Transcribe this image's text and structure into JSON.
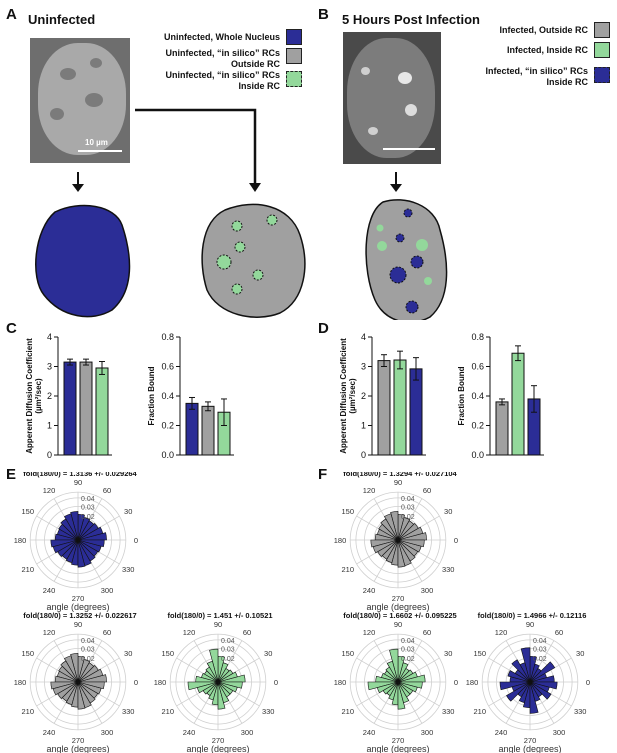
{
  "panels": {
    "A": {
      "label": "A",
      "title": "Uninfected",
      "scale_bar": "10 µm"
    },
    "B": {
      "label": "B",
      "title": "5 Hours Post Infection"
    },
    "C": {
      "label": "C"
    },
    "D": {
      "label": "D"
    },
    "E": {
      "label": "E"
    },
    "F": {
      "label": "F"
    }
  },
  "legend_uninfected": [
    {
      "lines": [
        "Uninfected, Whole Nucleus"
      ],
      "color": "#2b2d96",
      "dashed": false
    },
    {
      "lines": [
        "Uninfected, “in silico” RCs",
        "Outside RC"
      ],
      "color": "#a0a0a0",
      "dashed": false
    },
    {
      "lines": [
        "Uninfected, “in silico” RCs",
        "Inside RC"
      ],
      "color": "#93d89b",
      "dashed": true
    }
  ],
  "legend_infected": [
    {
      "lines": [
        "Infected, Outside RC"
      ],
      "color": "#a0a0a0",
      "dashed": false
    },
    {
      "lines": [
        "Infected, Inside RC"
      ],
      "color": "#93d89b",
      "dashed": false
    },
    {
      "lines": [
        "Infected, “in silico” RCs",
        "Inside RC"
      ],
      "color": "#2b2d96",
      "dashed": true
    }
  ],
  "colors": {
    "blue": "#2b2d96",
    "gray": "#a0a0a0",
    "green": "#93d89b"
  },
  "chart_data": [
    {
      "panel": "C",
      "type": "bar",
      "ylabel": "Apperent Diffusion Coefficient (µm²/sec)",
      "ylim": [
        0,
        4
      ],
      "yticks": [
        "0",
        "1",
        "2",
        "3",
        "4"
      ],
      "values": [
        3.15,
        3.15,
        2.95
      ],
      "errors": [
        0.1,
        0.1,
        0.22
      ],
      "colors": [
        "#2b2d96",
        "#a0a0a0",
        "#93d89b"
      ]
    },
    {
      "panel": "C",
      "type": "bar",
      "ylabel": "Fraction Bound",
      "ylim": [
        0,
        0.8
      ],
      "yticks": [
        "0.0",
        "0.2",
        "0.4",
        "0.6",
        "0.8"
      ],
      "values": [
        0.35,
        0.33,
        0.29
      ],
      "errors": [
        0.04,
        0.03,
        0.09
      ],
      "colors": [
        "#2b2d96",
        "#a0a0a0",
        "#93d89b"
      ]
    },
    {
      "panel": "D",
      "type": "bar",
      "ylabel": "Apperent Diffusion Coefficient (µm²/sec)",
      "ylim": [
        0,
        4
      ],
      "yticks": [
        "0",
        "1",
        "2",
        "3",
        "4"
      ],
      "values": [
        3.2,
        3.22,
        2.92
      ],
      "errors": [
        0.2,
        0.3,
        0.38
      ],
      "colors": [
        "#a0a0a0",
        "#93d89b",
        "#2b2d96"
      ]
    },
    {
      "panel": "D",
      "type": "bar",
      "ylabel": "Fraction Bound",
      "ylim": [
        0,
        0.8
      ],
      "yticks": [
        "0.0",
        "0.2",
        "0.4",
        "0.6",
        "0.8"
      ],
      "values": [
        0.36,
        0.69,
        0.38
      ],
      "errors": [
        0.02,
        0.05,
        0.09
      ],
      "colors": [
        "#a0a0a0",
        "#93d89b",
        "#2b2d96"
      ]
    },
    {
      "panel": "E",
      "type": "polar",
      "title": "fold(180/0) = 1.3136 +/- 0.029264",
      "color": "#2b2d96",
      "profile": "round"
    },
    {
      "panel": "E",
      "type": "polar",
      "title": "fold(180/0) = 1.3252 +/- 0.022617",
      "color": "#a0a0a0",
      "profile": "round"
    },
    {
      "panel": "E",
      "type": "polar",
      "title": "fold(180/0) = 1.451 +/- 0.10521",
      "color": "#93d89b",
      "profile": "lobed"
    },
    {
      "panel": "F",
      "type": "polar",
      "title": "fold(180/0) = 1.3294 +/- 0.027104",
      "color": "#a0a0a0",
      "profile": "round"
    },
    {
      "panel": "F",
      "type": "polar",
      "title": "fold(180/0) = 1.6602 +/- 0.095225",
      "color": "#93d89b",
      "profile": "lobed"
    },
    {
      "panel": "F",
      "type": "polar",
      "title": "fold(180/0) = 1.4966 +/- 0.12116",
      "color": "#2b2d96",
      "profile": "spiky"
    }
  ],
  "polar_common": {
    "xlabel": "angle (degrees)",
    "radial_ticks": [
      "0.02",
      "0.03",
      "0.04"
    ],
    "angle_labels": [
      "0",
      "30",
      "60",
      "90",
      "120",
      "150",
      "180",
      "210",
      "240",
      "270",
      "300",
      "330"
    ]
  }
}
